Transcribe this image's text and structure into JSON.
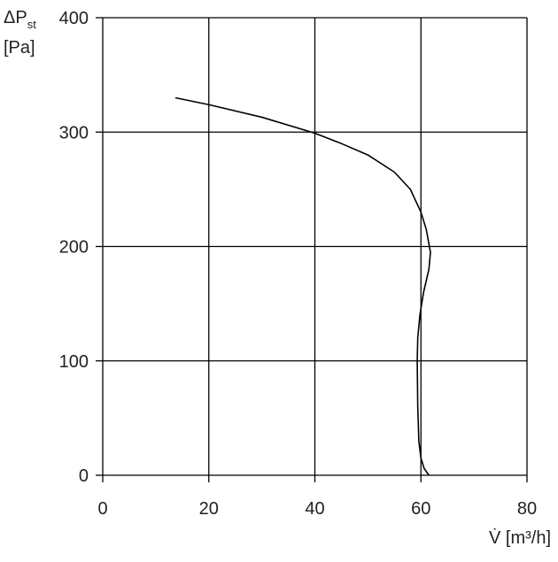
{
  "chart_data": {
    "type": "line",
    "ylabel_symbol": "ΔP",
    "ylabel_subscript": "st",
    "ylabel_unit": "[Pa]",
    "xlabel": "V̇ [m³/h]",
    "xlim": [
      0,
      80
    ],
    "xticks": [
      0,
      20,
      40,
      60,
      80
    ],
    "ylim": [
      0,
      400
    ],
    "yticks": [
      0,
      100,
      200,
      300,
      400
    ],
    "grid": true,
    "series": [
      {
        "color": "#000000",
        "x": [
          13.7,
          20,
          30,
          40,
          45,
          50,
          55,
          58,
          60,
          61,
          61.8,
          61.5,
          60.5,
          59.8,
          59.4,
          59.3,
          59.4,
          59.6,
          60,
          60.6,
          61.5
        ],
        "values": [
          330,
          324,
          313,
          299,
          290,
          280,
          265,
          250,
          230,
          215,
          195,
          180,
          160,
          140,
          120,
          100,
          60,
          30,
          15,
          6,
          0
        ]
      }
    ]
  }
}
